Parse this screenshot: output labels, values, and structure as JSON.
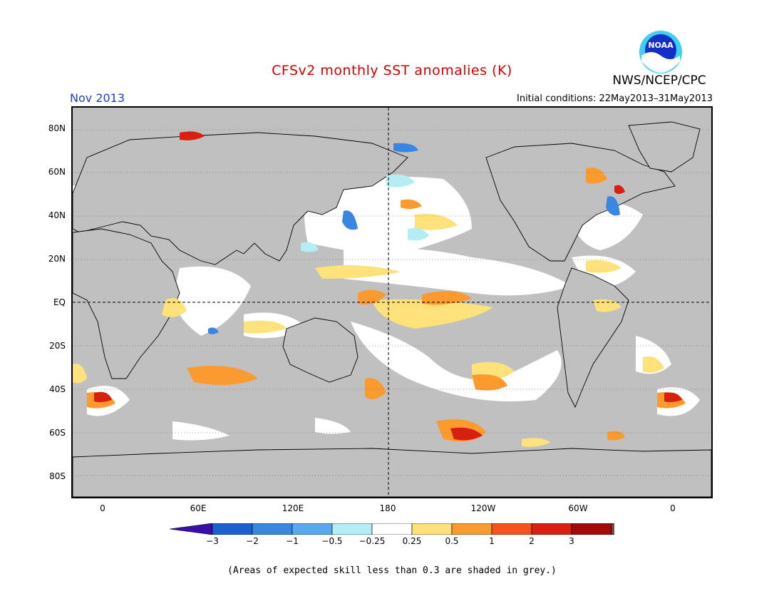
{
  "title": "CFSv2 monthly SST anomalies (K)",
  "organization": "NWS/NCEP/CPC",
  "logo_text": "NOAA",
  "target_month": "Nov 2013",
  "initial_conditions": "Initial conditions: 22May2013–31May2013",
  "lat_labels": [
    "80N",
    "60N",
    "40N",
    "20N",
    "EQ",
    "20S",
    "40S",
    "60S",
    "80S"
  ],
  "lon_labels": [
    "0",
    "60E",
    "120E",
    "180",
    "120W",
    "60W",
    "0"
  ],
  "colorbar": {
    "labels": [
      "−3",
      "−2",
      "−1",
      "−0.5",
      "−0.25",
      "0.25",
      "0.5",
      "1",
      "2",
      "3"
    ],
    "colors": [
      "#3a0fa8",
      "#1d5fd1",
      "#3a86e0",
      "#5aa8ee",
      "#b4eef4",
      "#ffffff",
      "#fde17a",
      "#fb9a2e",
      "#f4531a",
      "#d81f10",
      "#a20a0a",
      "#7b5040"
    ]
  },
  "note": "(Areas of expected skill less than 0.3 are shaded in grey.)",
  "colors": {
    "skill_mask_grey": "#c0c0c0",
    "title_red": "#d40000",
    "month_blue": "#1e3fd0"
  }
}
